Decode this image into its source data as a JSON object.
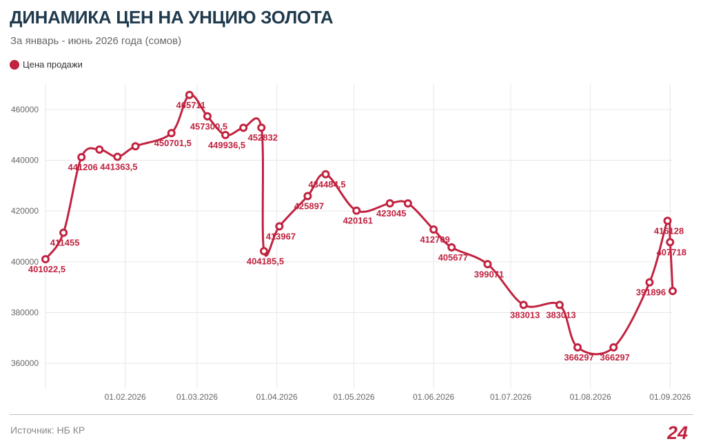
{
  "header": {
    "title": "ДИНАМИКА ЦЕН НА УНЦИЮ ЗОЛОТА",
    "subtitle": "За январь - июнь 2026 года (сомов)"
  },
  "legend": {
    "label": "Цена продажи",
    "color": "#c0223f"
  },
  "footer": {
    "source": "Источник: НБ КР",
    "logo_text": "24"
  },
  "colors": {
    "series": "#c0223f",
    "grid": "#e6e6e6",
    "axis_text": "#666666"
  },
  "chart_data": {
    "type": "line",
    "x_axis": {
      "kind": "date",
      "range": [
        "2026-01-01",
        "2026-09-02"
      ],
      "ticks": [
        {
          "date": "2026-02-01",
          "label": "01.02.2026"
        },
        {
          "date": "2026-03-01",
          "label": "01.03.2026"
        },
        {
          "date": "2026-04-01",
          "label": "01.04.2026"
        },
        {
          "date": "2026-05-01",
          "label": "01.05.2026"
        },
        {
          "date": "2026-06-01",
          "label": "01.06.2026"
        },
        {
          "date": "2026-07-01",
          "label": "01.07.2026"
        },
        {
          "date": "2026-08-01",
          "label": "01.08.2026"
        },
        {
          "date": "2026-09-01",
          "label": "01.09.2026"
        }
      ]
    },
    "y_axis": {
      "min": 350000,
      "max": 470000,
      "ticks": [
        360000,
        380000,
        400000,
        420000,
        440000,
        460000
      ]
    },
    "grid": true,
    "legend_position": "top-left",
    "series": [
      {
        "name": "Цена продажи",
        "points": [
          {
            "date": "2026-01-01",
            "value": 401022.5,
            "label": "401022,5"
          },
          {
            "date": "2026-01-08",
            "value": 411455,
            "label": "411455"
          },
          {
            "date": "2026-01-15",
            "value": 441206,
            "label": "441206"
          },
          {
            "date": "2026-01-22",
            "value": 444200,
            "label": ""
          },
          {
            "date": "2026-01-29",
            "value": 441363.5,
            "label": "441363,5"
          },
          {
            "date": "2026-02-05",
            "value": 445500,
            "label": ""
          },
          {
            "date": "2026-02-19",
            "value": 450701.5,
            "label": "450701,5"
          },
          {
            "date": "2026-02-26",
            "value": 465711,
            "label": "465711"
          },
          {
            "date": "2026-03-05",
            "value": 457300.5,
            "label": "457300,5"
          },
          {
            "date": "2026-03-12",
            "value": 449936.5,
            "label": "449936,5"
          },
          {
            "date": "2026-03-19",
            "value": 452800,
            "label": ""
          },
          {
            "date": "2026-03-26",
            "value": 452832,
            "label": "452832"
          },
          {
            "date": "2026-03-27",
            "value": 404185.5,
            "label": "404185,5"
          },
          {
            "date": "2026-04-02",
            "value": 413967,
            "label": "413967"
          },
          {
            "date": "2026-04-13",
            "value": 425897,
            "label": "425897"
          },
          {
            "date": "2026-04-20",
            "value": 434484.5,
            "label": "434484,5"
          },
          {
            "date": "2026-05-02",
            "value": 420161,
            "label": "420161"
          },
          {
            "date": "2026-05-15",
            "value": 423045,
            "label": "423045"
          },
          {
            "date": "2026-05-22",
            "value": 423000,
            "label": ""
          },
          {
            "date": "2026-06-01",
            "value": 412709,
            "label": "412709"
          },
          {
            "date": "2026-06-08",
            "value": 405677,
            "label": "405677"
          },
          {
            "date": "2026-06-22",
            "value": 399071,
            "label": "399071"
          },
          {
            "date": "2026-07-06",
            "value": 383013,
            "label": "383013"
          },
          {
            "date": "2026-07-20",
            "value": 383013,
            "label": "383013"
          },
          {
            "date": "2026-07-27",
            "value": 366297,
            "label": "366297"
          },
          {
            "date": "2026-08-10",
            "value": 366297,
            "label": "366297"
          },
          {
            "date": "2026-08-24",
            "value": 391896,
            "label": "391896"
          },
          {
            "date": "2026-08-31",
            "value": 416128,
            "label": "416128"
          },
          {
            "date": "2026-09-01",
            "value": 407718,
            "label": "407718"
          },
          {
            "date": "2026-09-02",
            "value": 388500,
            "label": ""
          }
        ]
      }
    ]
  }
}
